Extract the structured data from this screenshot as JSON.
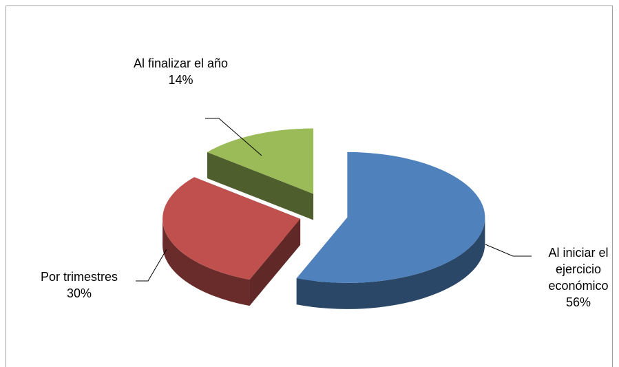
{
  "chart_data": {
    "type": "pie",
    "categories": [
      "Al iniciar el ejercicio económico",
      "Por trimestres",
      "Al finalizar el año"
    ],
    "values": [
      56,
      30,
      14
    ],
    "value_labels": [
      "56%",
      "30%",
      "14%"
    ],
    "colors": [
      "#4f81bd",
      "#c0504d",
      "#9bbb59"
    ]
  }
}
